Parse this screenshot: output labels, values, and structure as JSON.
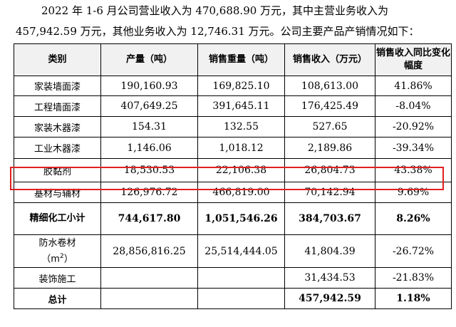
{
  "intro": {
    "line1": "2022 年 1-6 月公司营业收入为 470,688.90 万元，其中主营业务收入为",
    "line2": "457,942.59 万元，其他业务收入为 12,746.31 万元。公司主要产品产销情况如下："
  },
  "table": {
    "headers": [
      "类别",
      "产量（吨）",
      "销售重量（吨）",
      "销售收入（万元）",
      "销售收入同比变化幅度"
    ],
    "rows": [
      {
        "category": "家装墙面漆",
        "production": "190,160.93",
        "sales_weight": "169,825.10",
        "revenue": "108,613.00",
        "change": "41.86%"
      },
      {
        "category": "工程墙面漆",
        "production": "407,649.25",
        "sales_weight": "391,645.11",
        "revenue": "176,425.49",
        "change": "-8.04%"
      },
      {
        "category": "家装木器漆",
        "production": "154.31",
        "sales_weight": "132.55",
        "revenue": "527.65",
        "change": "-20.92%"
      },
      {
        "category": "工业木器漆",
        "production": "1,146.06",
        "sales_weight": "1,018.12",
        "revenue": "2,189.86",
        "change": "-39.34%"
      },
      {
        "category": "胶黏剂",
        "production": "18,530.53",
        "sales_weight": "22,106.38",
        "revenue": "26,804.73",
        "change": "43.38%"
      },
      {
        "category": "基材与辅材",
        "production": "126,976.72",
        "sales_weight": "466,819.00",
        "revenue": "70,142.94",
        "change": "9.69%"
      },
      {
        "category": "精细化工小计",
        "production": "744,617.80",
        "sales_weight": "1,051,546.26",
        "revenue": "384,703.67",
        "change": "8.26%"
      },
      {
        "category": "防水卷材",
        "category_unit": "（m",
        "category_unit_sup": "2",
        "category_unit_close": "）",
        "production": "28,856,816.25",
        "sales_weight": "25,514,444.05",
        "revenue": "41,804.39",
        "change": "-26.72%"
      },
      {
        "category": "装饰施工",
        "production": "",
        "sales_weight": "",
        "revenue": "31,434.53",
        "change": "-21.83%"
      },
      {
        "category": "总计",
        "production": "",
        "sales_weight": "",
        "revenue": "457,942.59",
        "change": "1.18%"
      }
    ]
  },
  "colors": {
    "highlight": "#e02020",
    "header_bg": "#f1f1f1"
  }
}
